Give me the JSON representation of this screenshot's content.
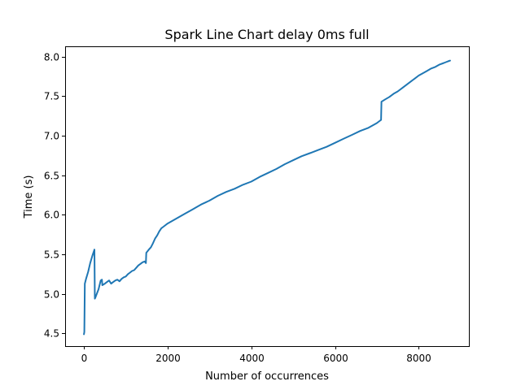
{
  "chart_data": {
    "type": "line",
    "title": "Spark Line Chart delay 0ms full",
    "xlabel": "Number of occurrences",
    "ylabel": "Time (s)",
    "xlim": [
      -450,
      9200
    ],
    "ylim": [
      4.34,
      8.12
    ],
    "x_ticks": [
      0,
      2000,
      4000,
      6000,
      8000
    ],
    "x_tick_labels": [
      "0",
      "2000",
      "4000",
      "6000",
      "8000"
    ],
    "y_ticks": [
      4.5,
      5.0,
      5.5,
      6.0,
      6.5,
      7.0,
      7.5,
      8.0
    ],
    "y_tick_labels": [
      "4.5",
      "5.0",
      "5.5",
      "6.0",
      "6.5",
      "7.0",
      "7.5",
      "8.0"
    ],
    "grid": false,
    "series": [
      {
        "color": "#1f77b4",
        "x": [
          0,
          10,
          20,
          50,
          100,
          150,
          200,
          250,
          260,
          270,
          300,
          350,
          400,
          430,
          440,
          500,
          550,
          600,
          650,
          700,
          750,
          800,
          850,
          900,
          950,
          1000,
          1050,
          1100,
          1150,
          1200,
          1250,
          1300,
          1350,
          1400,
          1450,
          1480,
          1490,
          1550,
          1600,
          1650,
          1700,
          1750,
          1800,
          1850,
          1900,
          1950,
          2000,
          2200,
          2400,
          2600,
          2800,
          3000,
          3200,
          3400,
          3600,
          3800,
          4000,
          4200,
          4400,
          4600,
          4800,
          5000,
          5200,
          5400,
          5600,
          5800,
          6000,
          6200,
          6400,
          6600,
          6800,
          7000,
          7050,
          7100,
          7110,
          7200,
          7300,
          7400,
          7500,
          7600,
          7700,
          7800,
          7900,
          8000,
          8100,
          8200,
          8300,
          8400,
          8500,
          8600,
          8700,
          8750
        ],
        "y": [
          4.49,
          4.52,
          5.13,
          5.19,
          5.28,
          5.39,
          5.48,
          5.56,
          4.94,
          4.95,
          4.99,
          5.06,
          5.17,
          5.18,
          5.11,
          5.13,
          5.15,
          5.17,
          5.13,
          5.15,
          5.17,
          5.18,
          5.16,
          5.19,
          5.21,
          5.22,
          5.25,
          5.27,
          5.29,
          5.3,
          5.33,
          5.36,
          5.38,
          5.4,
          5.41,
          5.39,
          5.52,
          5.56,
          5.59,
          5.64,
          5.7,
          5.74,
          5.79,
          5.83,
          5.85,
          5.87,
          5.89,
          5.95,
          6.01,
          6.07,
          6.13,
          6.18,
          6.24,
          6.29,
          6.33,
          6.38,
          6.42,
          6.48,
          6.53,
          6.58,
          6.64,
          6.69,
          6.74,
          6.78,
          6.82,
          6.86,
          6.91,
          6.96,
          7.01,
          7.06,
          7.1,
          7.16,
          7.18,
          7.2,
          7.43,
          7.46,
          7.49,
          7.53,
          7.56,
          7.6,
          7.64,
          7.68,
          7.72,
          7.76,
          7.79,
          7.82,
          7.85,
          7.87,
          7.9,
          7.92,
          7.94,
          7.95
        ]
      }
    ]
  }
}
